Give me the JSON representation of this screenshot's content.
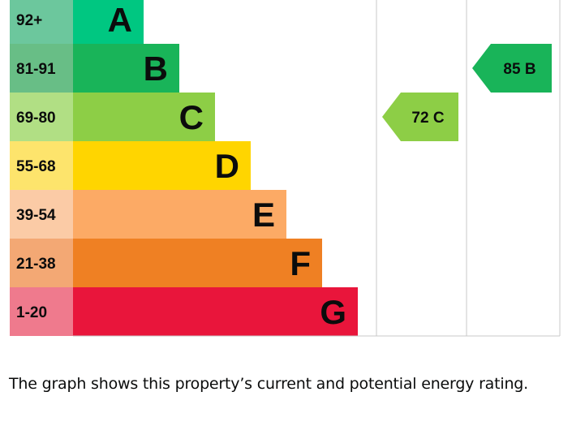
{
  "chart_data": {
    "type": "bar",
    "bands": [
      {
        "range": "92+",
        "letter": "A",
        "color": "#00c781",
        "range_bg": "#6cc79d"
      },
      {
        "range": "81-91",
        "letter": "B",
        "color": "#19b459",
        "range_bg": "#68be86"
      },
      {
        "range": "69-80",
        "letter": "C",
        "color": "#8dce46",
        "range_bg": "#b1df84"
      },
      {
        "range": "55-68",
        "letter": "D",
        "color": "#ffd500",
        "range_bg": "#fde46c"
      },
      {
        "range": "39-54",
        "letter": "E",
        "color": "#fcaa65",
        "range_bg": "#fbcba6"
      },
      {
        "range": "21-38",
        "letter": "F",
        "color": "#ef8023",
        "range_bg": "#f3a874"
      },
      {
        "range": "1-20",
        "letter": "G",
        "color": "#e9153b",
        "range_bg": "#ef7a8d"
      }
    ],
    "ratings": [
      {
        "name": "current",
        "value": 72,
        "band": "C",
        "label": "72 C",
        "color": "#8dce46"
      },
      {
        "name": "potential",
        "value": 85,
        "band": "B",
        "label": "85 B",
        "color": "#19b459"
      }
    ]
  },
  "caption": "The graph shows this property’s current and potential energy rating."
}
